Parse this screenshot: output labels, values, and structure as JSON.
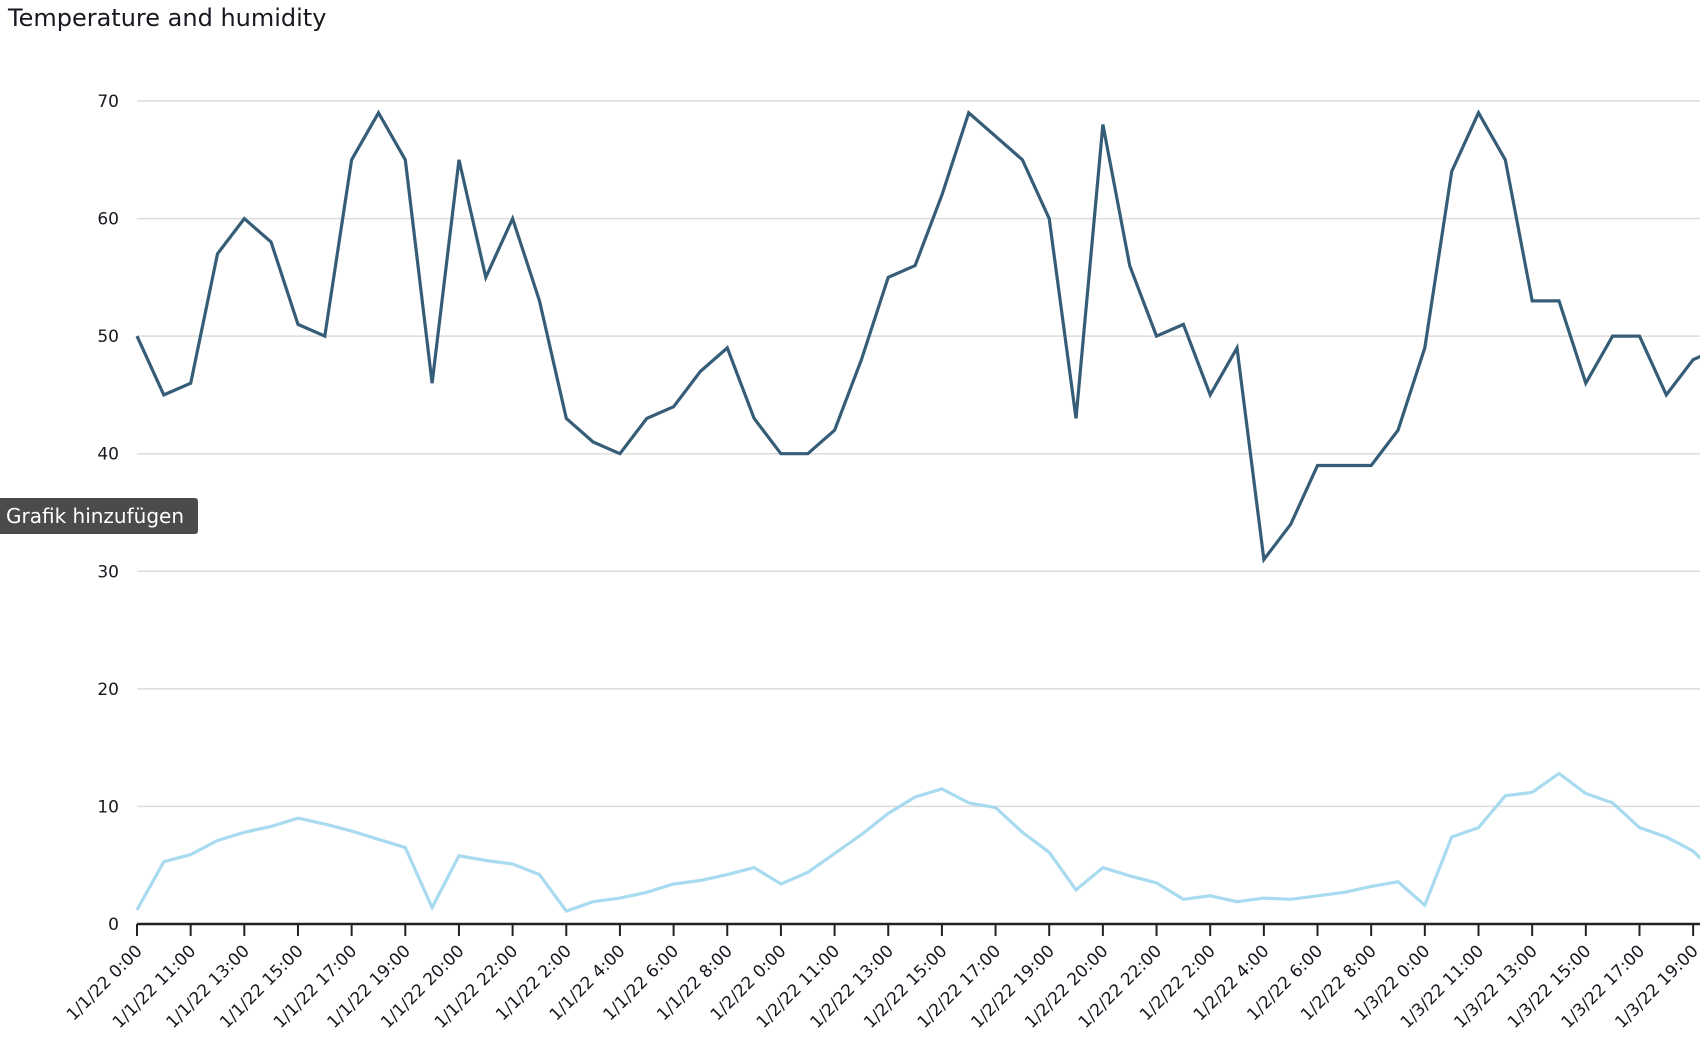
{
  "title": "Temperature and humidity",
  "tooltip": "Grafik hinzufügen",
  "chart_data": {
    "type": "line",
    "title": "Temperature and humidity",
    "xlabel": "",
    "ylabel": "",
    "ylim": [
      0,
      70
    ],
    "yticks": [
      0,
      10,
      20,
      30,
      40,
      50,
      60,
      70
    ],
    "grid": true,
    "x_tick_labels": [
      "1/1/22 0:00",
      "1/1/22 11:00",
      "1/1/22 13:00",
      "1/1/22 15:00",
      "1/1/22 17:00",
      "1/1/22 19:00",
      "1/1/22 20:00",
      "1/1/22 22:00",
      "1/1/22 2:00",
      "1/1/22 4:00",
      "1/1/22 6:00",
      "1/1/22 8:00",
      "1/2/22 0:00",
      "1/2/22 11:00",
      "1/2/22 13:00",
      "1/2/22 15:00",
      "1/2/22 17:00",
      "1/2/22 19:00",
      "1/2/22 20:00",
      "1/2/22 22:00",
      "1/2/22 2:00",
      "1/2/22 4:00",
      "1/2/22 6:00",
      "1/2/22 8:00",
      "1/3/22 0:00",
      "1/3/22 11:00",
      "1/3/22 13:00",
      "1/3/22 15:00",
      "1/3/22 17:00",
      "1/3/22 19:00"
    ],
    "series": [
      {
        "color": "#365d78",
        "values": [
          50,
          45,
          46,
          57,
          60,
          58,
          51,
          50,
          65,
          69,
          65,
          46,
          65,
          55,
          60,
          53,
          43,
          41,
          40,
          43,
          44,
          47,
          49,
          43,
          40,
          40,
          42,
          48,
          55,
          56,
          62,
          69,
          67,
          65,
          60,
          43,
          68,
          56,
          50,
          51,
          45,
          49,
          31,
          34,
          39,
          39,
          39,
          42,
          49,
          64,
          69,
          65,
          53,
          53,
          46,
          50,
          50,
          45,
          48,
          49
        ]
      },
      {
        "color": "#a8daf0",
        "values": [
          1.2,
          5.3,
          5.9,
          7.1,
          7.8,
          8.3,
          9.0,
          8.5,
          7.9,
          7.2,
          6.5,
          1.4,
          5.8,
          5.4,
          5.1,
          4.2,
          1.1,
          1.9,
          2.2,
          2.7,
          3.4,
          3.7,
          4.2,
          4.8,
          3.4,
          4.4,
          6.0,
          7.6,
          9.4,
          10.8,
          11.5,
          10.3,
          9.9,
          7.8,
          6.1,
          2.9,
          4.8,
          4.1,
          3.5,
          2.1,
          2.4,
          1.9,
          2.2,
          2.1,
          2.4,
          2.7,
          3.2,
          3.6,
          1.6,
          7.4,
          8.2,
          10.9,
          11.2,
          12.8,
          11.1,
          10.3,
          8.2,
          7.4,
          6.2,
          4.0
        ]
      }
    ]
  }
}
